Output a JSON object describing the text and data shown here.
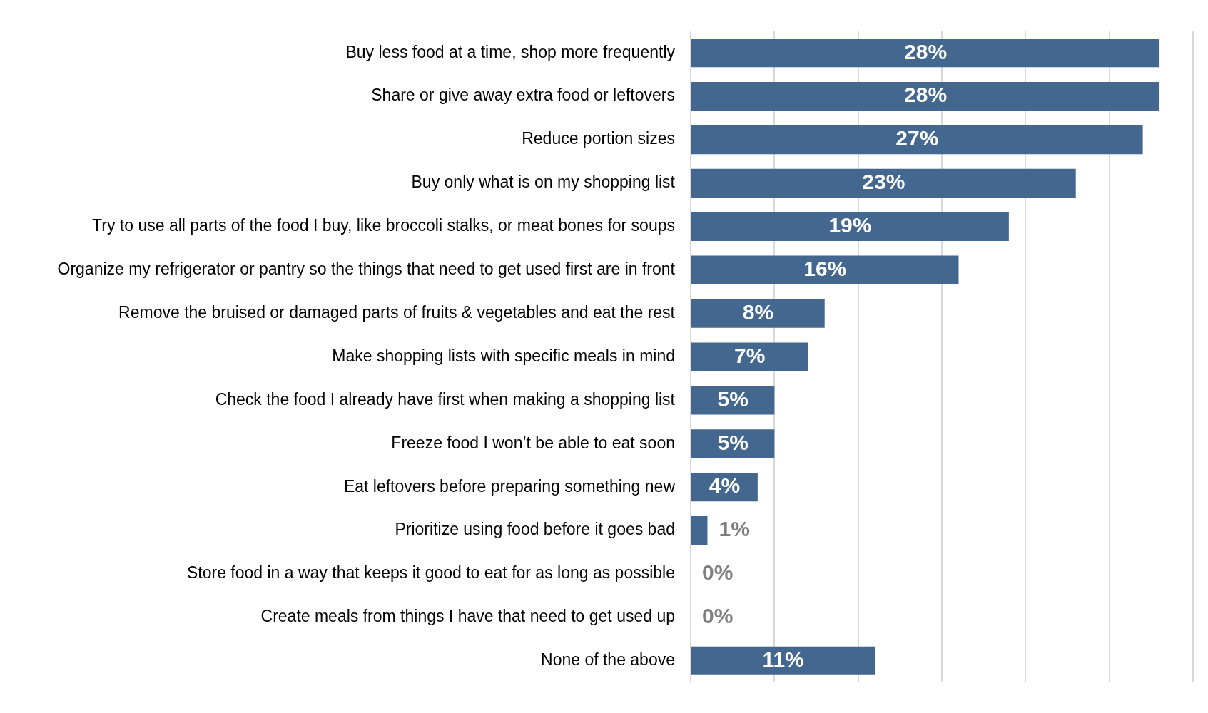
{
  "chart_data": {
    "type": "bar",
    "orientation": "horizontal",
    "categories": [
      "Buy less food at a time, shop more frequently",
      "Share or give away extra food or leftovers",
      "Reduce portion sizes",
      "Buy only what is on my shopping list",
      "Try to use all parts of the food I buy, like broccoli stalks, or meat bones for soups",
      "Organize my refrigerator or pantry so the things that need to get used first are in front",
      "Remove the bruised or damaged parts of fruits & vegetables and eat the rest",
      "Make shopping lists with specific meals in mind",
      "Check the food I already have first when making a shopping list",
      "Freeze food I won’t be able to eat soon",
      "Eat leftovers before preparing something new",
      "Prioritize using food before it goes bad",
      "Store food in a way that keeps it good to eat for as long as possible",
      "Create meals from things I have that need to get used up",
      "None of the above"
    ],
    "values": [
      28,
      28,
      27,
      23,
      19,
      16,
      8,
      7,
      5,
      5,
      4,
      1,
      0,
      0,
      11
    ],
    "value_labels": [
      "28%",
      "28%",
      "27%",
      "23%",
      "19%",
      "16%",
      "8%",
      "7%",
      "5%",
      "5%",
      "4%",
      "1%",
      "0%",
      "0%",
      "11%"
    ],
    "color": "#44678f",
    "grid": "x",
    "tick_labels": "y"
  }
}
